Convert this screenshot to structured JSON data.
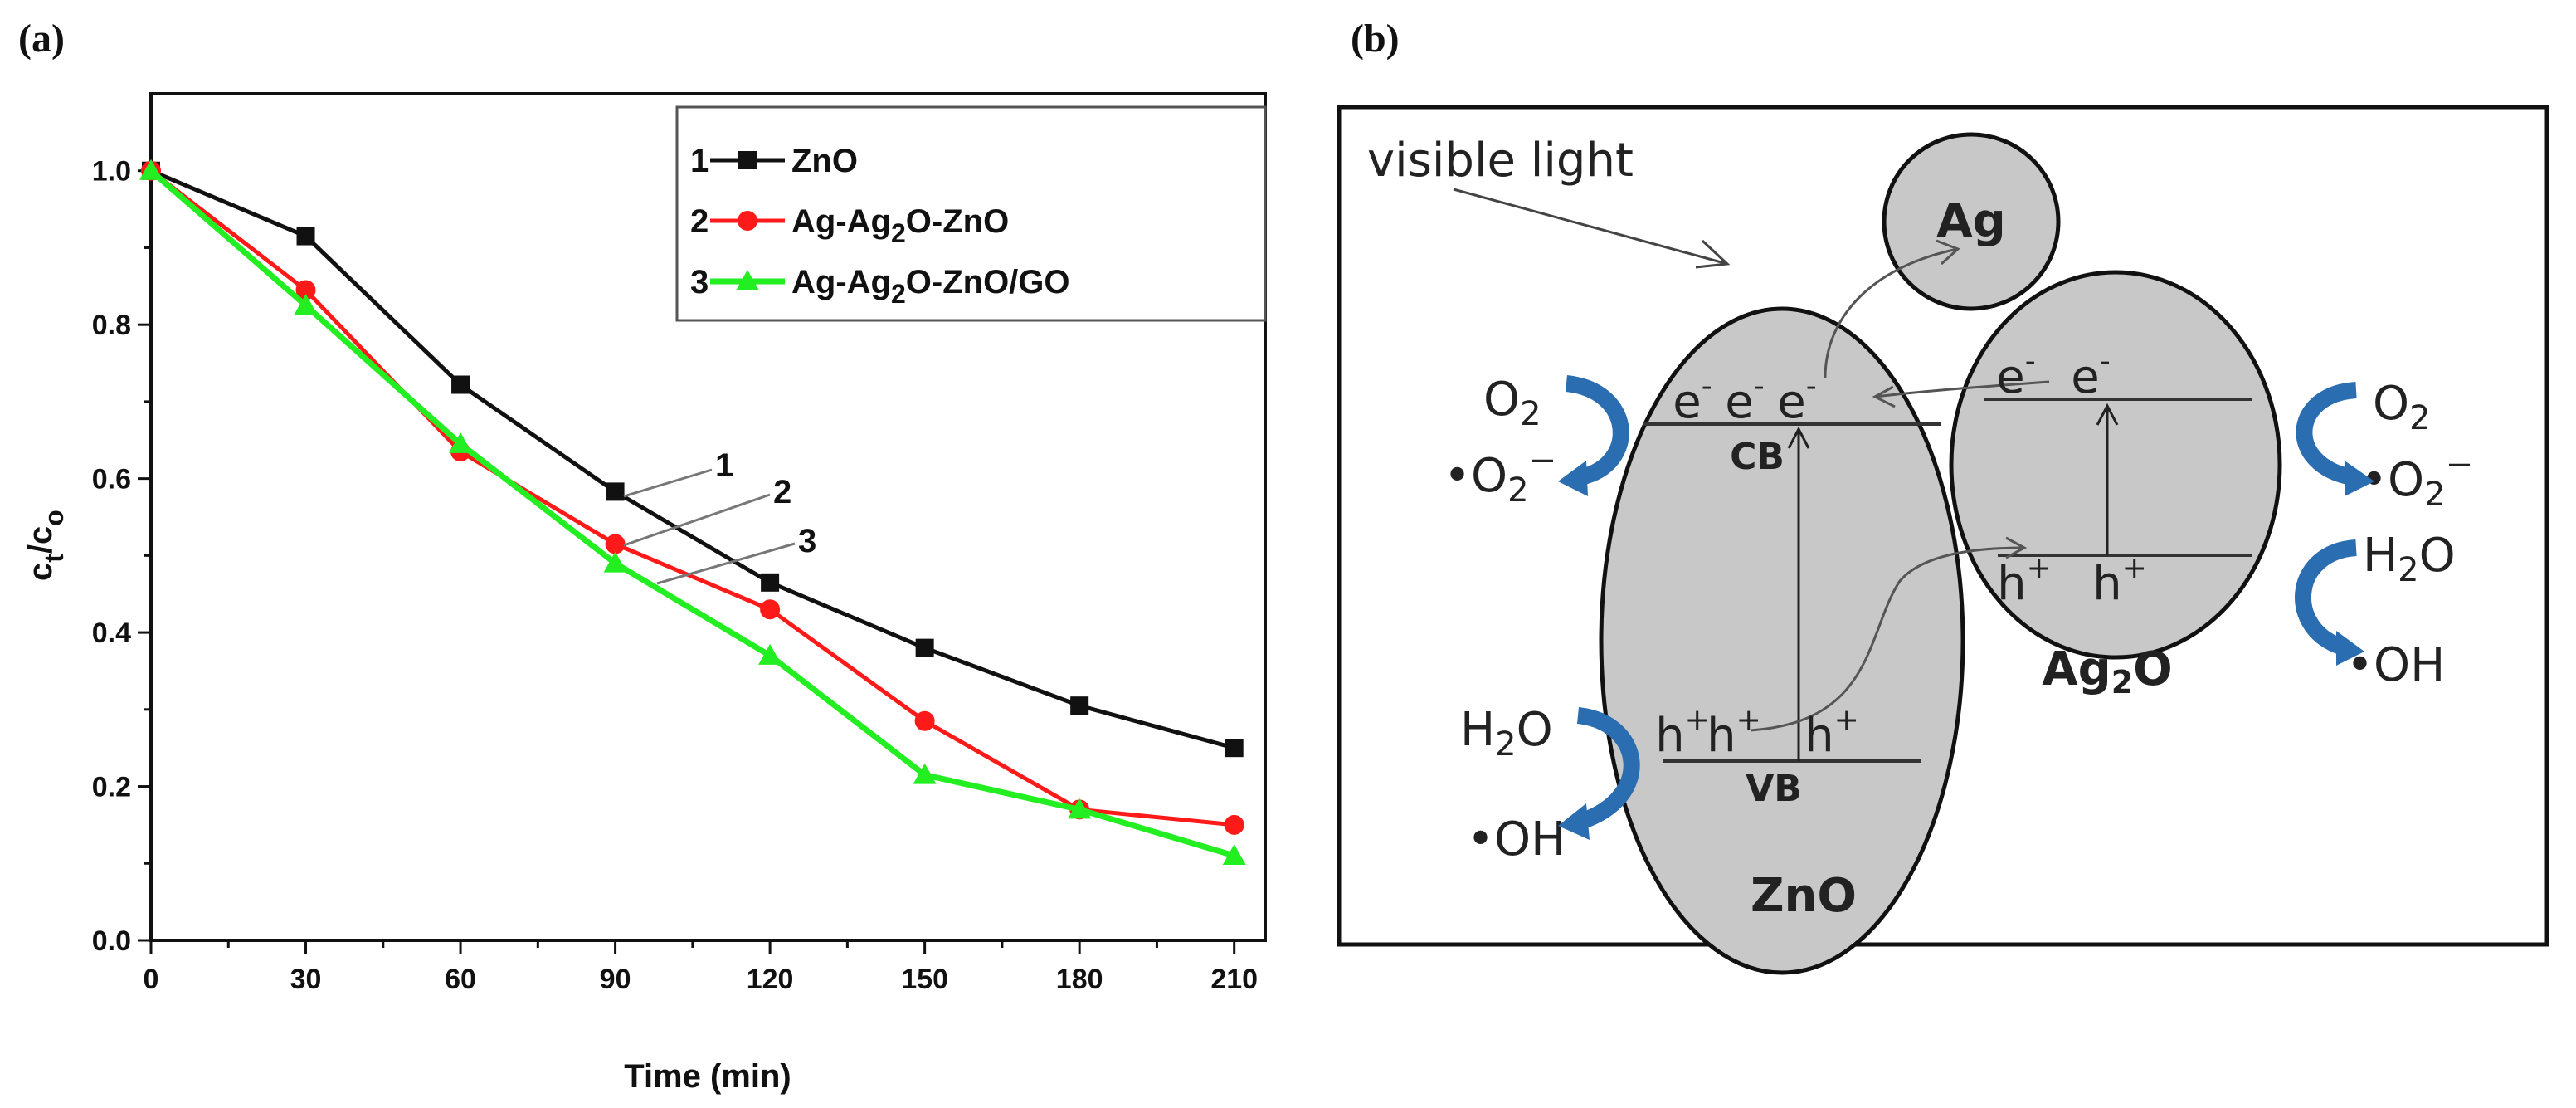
{
  "panel_a_label": "(a)",
  "panel_b_label": "(b)",
  "chart_data": {
    "type": "line",
    "title": "",
    "xlabel": "Time (min)",
    "ylabel": "ct/co",
    "ylabel_main": "c",
    "ylabel_sub1": "t",
    "ylabel_sep": "/c",
    "ylabel_sub2": "o",
    "x": [
      0,
      30,
      60,
      90,
      120,
      150,
      180,
      210
    ],
    "xlim": [
      0,
      216
    ],
    "ylim": [
      0,
      1.1
    ],
    "xticks": [
      "0",
      "30",
      "60",
      "90",
      "120",
      "150",
      "180",
      "210"
    ],
    "yticks": [
      "0.0",
      "0.2",
      "0.4",
      "0.6",
      "0.8",
      "1.0"
    ],
    "grid": false,
    "legend_position": "top-right",
    "series": [
      {
        "id": "1",
        "name": "ZnO",
        "name_parts": [
          "ZnO",
          "",
          ""
        ],
        "color": "#111111",
        "marker": "square",
        "values": [
          1.0,
          0.915,
          0.722,
          0.583,
          0.465,
          0.38,
          0.305,
          0.25
        ]
      },
      {
        "id": "2",
        "name": "Ag-Ag2O-ZnO",
        "name_parts": [
          "Ag-Ag",
          "2",
          "O-ZnO"
        ],
        "color": "#ff1a1a",
        "marker": "circle",
        "values": [
          1.0,
          0.845,
          0.635,
          0.515,
          0.43,
          0.285,
          0.17,
          0.15
        ]
      },
      {
        "id": "3",
        "name": "Ag-Ag2O-ZnO/GO",
        "name_parts": [
          "Ag-Ag",
          "2",
          "O-ZnO/GO"
        ],
        "color": "#22ee22",
        "marker": "triangle",
        "values": [
          1.0,
          0.825,
          0.645,
          0.49,
          0.37,
          0.215,
          0.17,
          0.11
        ]
      }
    ],
    "annotations": [
      "1",
      "2",
      "3"
    ]
  },
  "diagram": {
    "visible_light": "visible light",
    "ag": "Ag",
    "ag2o": "Ag",
    "ag2o_sub": "2",
    "ag2o_end": "O",
    "zno": "ZnO",
    "cb": "CB",
    "vb": "VB",
    "electron": "e",
    "minus": "-",
    "hole": "h",
    "plus": "+",
    "o2": "O",
    "sub2": "2",
    "superoxide": "•O",
    "superoxide_charge": "−",
    "h2o_h": "H",
    "h2o_o": "O",
    "oh": "•OH",
    "arrow_color": "#2a6db0",
    "particle_fill": "#c8c8c8"
  }
}
